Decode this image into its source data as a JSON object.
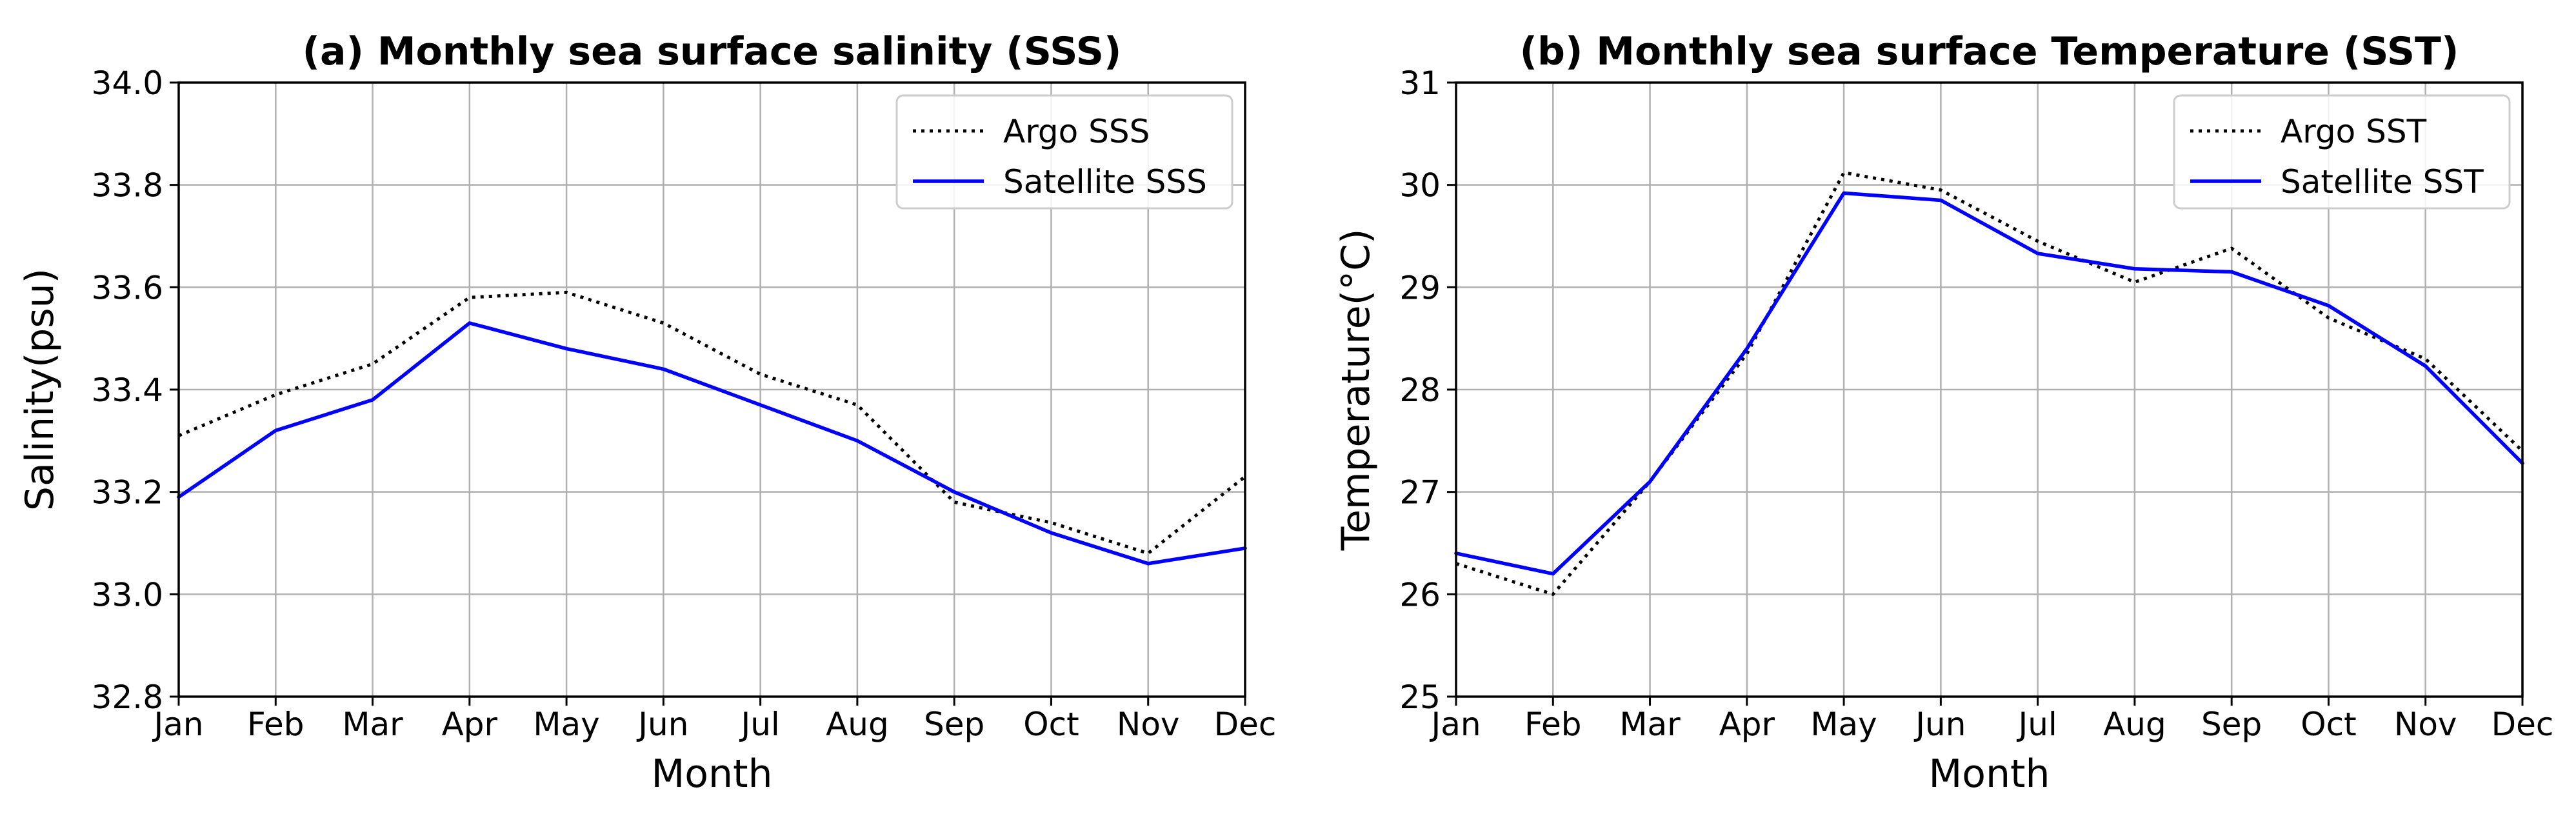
{
  "chart_data": [
    {
      "type": "line",
      "title": "(a) Monthly sea surface salinity (SSS)",
      "xlabel": "Month",
      "ylabel": "Salinity(psu)",
      "categories": [
        "Jan",
        "Feb",
        "Mar",
        "Apr",
        "May",
        "Jun",
        "Jul",
        "Aug",
        "Sep",
        "Oct",
        "Nov",
        "Dec"
      ],
      "ylim": [
        32.8,
        34.0
      ],
      "yticks": [
        "32.8",
        "33.0",
        "33.2",
        "33.4",
        "33.6",
        "33.8",
        "34.0"
      ],
      "ytick_values": [
        32.8,
        33.0,
        33.2,
        33.4,
        33.6,
        33.8,
        34.0
      ],
      "grid": true,
      "legend_position": "top-right",
      "series": [
        {
          "name": "Argo SSS",
          "style": "dotted",
          "color": "#000000",
          "values": [
            33.31,
            33.39,
            33.45,
            33.58,
            33.59,
            33.53,
            33.43,
            33.37,
            33.18,
            33.14,
            33.08,
            33.23
          ]
        },
        {
          "name": "Satellite SSS",
          "style": "solid",
          "color": "#0000ff",
          "values": [
            33.19,
            33.32,
            33.38,
            33.53,
            33.48,
            33.44,
            33.37,
            33.3,
            33.2,
            33.12,
            33.06,
            33.09
          ]
        }
      ]
    },
    {
      "type": "line",
      "title": "(b) Monthly sea surface Temperature (SST)",
      "xlabel": "Month",
      "ylabel": "Temperature(°C)",
      "categories": [
        "Jan",
        "Feb",
        "Mar",
        "Apr",
        "May",
        "Jun",
        "Jul",
        "Aug",
        "Sep",
        "Oct",
        "Nov",
        "Dec"
      ],
      "ylim": [
        25,
        31
      ],
      "yticks": [
        "25",
        "26",
        "27",
        "28",
        "29",
        "30",
        "31"
      ],
      "ytick_values": [
        25,
        26,
        27,
        28,
        29,
        30,
        31
      ],
      "grid": true,
      "legend_position": "top-right",
      "series": [
        {
          "name": "Argo SST",
          "style": "dotted",
          "color": "#000000",
          "values": [
            26.3,
            26.0,
            27.1,
            28.35,
            30.12,
            29.95,
            29.45,
            29.05,
            29.38,
            28.7,
            28.3,
            27.4
          ]
        },
        {
          "name": "Satellite SST",
          "style": "solid",
          "color": "#0000ff",
          "values": [
            26.4,
            26.2,
            27.1,
            28.4,
            29.92,
            29.85,
            29.33,
            29.18,
            29.15,
            28.82,
            28.23,
            27.28
          ]
        }
      ]
    }
  ]
}
